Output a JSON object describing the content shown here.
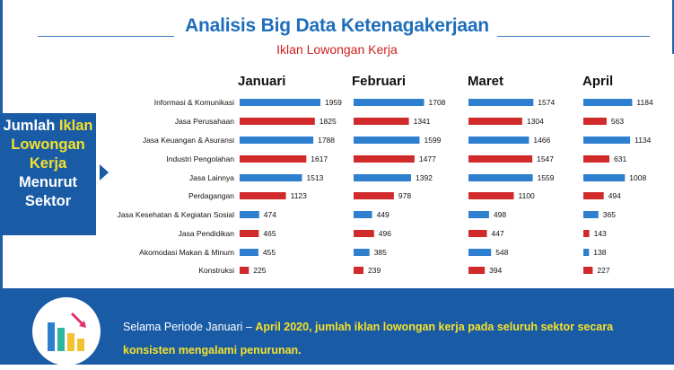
{
  "title": "Analisis Big Data Ketenagakerjaan",
  "subtitle": "Iklan Lowongan Kerja",
  "side_label": {
    "lines": [
      {
        "a": "Jumlah ",
        "b": "Iklan"
      },
      {
        "a": "",
        "b": "Lowongan"
      },
      {
        "a": "",
        "b": "Kerja"
      },
      {
        "a": "Menurut",
        "b": ""
      },
      {
        "a": "Sektor",
        "b": ""
      }
    ]
  },
  "footer": {
    "part1": "Selama Periode Januari – ",
    "part2": "April 2020, jumlah iklan lowongan kerja pada seluruh sektor secara konsisten mengalami penurunan."
  },
  "colors": {
    "blue": "#2f7fd0",
    "red": "#d12a2a",
    "brand": "#1a5ba6",
    "highlight": "#f5e12a"
  },
  "chart_data": {
    "type": "bar",
    "orientation": "horizontal",
    "categories": [
      "Informasi & Komunikasi",
      "Jasa Perusahaan",
      "Jasa Keuangan & Asuransi",
      "Industri Pengolahan",
      "Jasa Lainnya",
      "Perdagangan",
      "Jasa Kesehatan & Kegiatan Sosial",
      "Jasa Pendidikan",
      "Akomodasi Makan & Minum",
      "Konstruksi"
    ],
    "bar_colors": [
      "blue",
      "red",
      "blue",
      "red",
      "blue",
      "red",
      "blue",
      "red",
      "blue",
      "red"
    ],
    "series": [
      {
        "name": "Januari",
        "values": [
          1959,
          1825,
          1788,
          1617,
          1513,
          1123,
          474,
          465,
          455,
          225
        ]
      },
      {
        "name": "Februari",
        "values": [
          1708,
          1341,
          1599,
          1477,
          1392,
          978,
          449,
          496,
          385,
          239
        ]
      },
      {
        "name": "Maret",
        "values": [
          1574,
          1304,
          1466,
          1547,
          1559,
          1100,
          498,
          447,
          548,
          394
        ]
      },
      {
        "name": "April",
        "values": [
          1184,
          563,
          1134,
          631,
          1008,
          494,
          365,
          143,
          138,
          227
        ]
      }
    ]
  }
}
